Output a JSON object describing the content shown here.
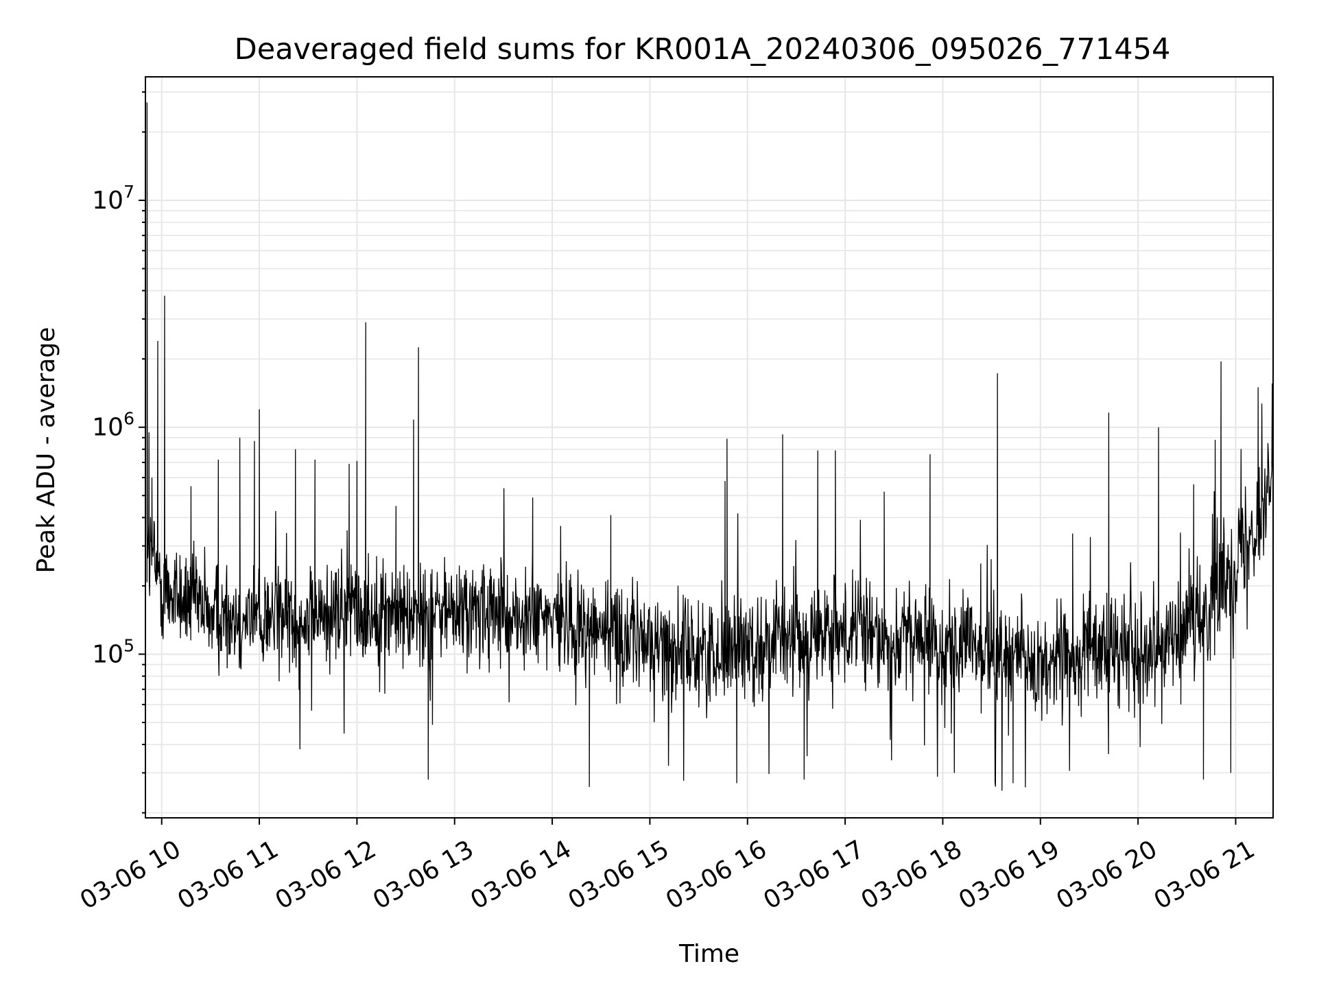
{
  "chart_data": {
    "type": "line",
    "title": "Deaveraged field sums for KR001A_20240306_095026_771454",
    "xlabel": "Time",
    "ylabel": "Peak ADU - average",
    "x_scale": "time",
    "y_scale": "log",
    "xlim": [
      "2024-03-06 09:50",
      "2024-03-06 21:23"
    ],
    "ylim": [
      19000,
      35000000
    ],
    "grid": true,
    "grid_minor": true,
    "legend": "none",
    "line_color": "#000000",
    "grid_color": "#e6e6e6",
    "x_tick_labels": [
      "03-06 10",
      "03-06 11",
      "03-06 12",
      "03-06 13",
      "03-06 14",
      "03-06 15",
      "03-06 16",
      "03-06 17",
      "03-06 18",
      "03-06 19",
      "03-06 20",
      "03-06 21"
    ],
    "x_tick_hours": [
      10,
      11,
      12,
      13,
      14,
      15,
      16,
      17,
      18,
      19,
      20,
      21
    ],
    "y_tick_labels": [
      {
        "base": "10",
        "exp": "5",
        "value": 100000
      },
      {
        "base": "10",
        "exp": "6",
        "value": 1000000
      },
      {
        "base": "10",
        "exp": "7",
        "value": 10000000
      }
    ],
    "baseline": [
      [
        9.85,
        300000
      ],
      [
        10.0,
        200000
      ],
      [
        10.5,
        150000
      ],
      [
        11.0,
        145000
      ],
      [
        11.5,
        150000
      ],
      [
        12.0,
        155000
      ],
      [
        12.5,
        150000
      ],
      [
        13.0,
        155000
      ],
      [
        13.5,
        145000
      ],
      [
        14.0,
        140000
      ],
      [
        14.5,
        130000
      ],
      [
        15.0,
        112000
      ],
      [
        15.5,
        100000
      ],
      [
        16.0,
        110000
      ],
      [
        16.5,
        120000
      ],
      [
        17.0,
        120000
      ],
      [
        17.5,
        118000
      ],
      [
        18.0,
        112000
      ],
      [
        18.5,
        100000
      ],
      [
        19.0,
        90000
      ],
      [
        19.5,
        100000
      ],
      [
        20.0,
        110000
      ],
      [
        20.5,
        120000
      ],
      [
        21.0,
        260000
      ],
      [
        21.38,
        550000
      ]
    ],
    "series": [
      {
        "values": [
          [
            9.85,
            27000000
          ],
          [
            9.87,
            950000
          ],
          [
            9.9,
            600000
          ],
          [
            9.96,
            2400000
          ],
          [
            10.03,
            3800000
          ],
          [
            10.3,
            550000
          ],
          [
            10.58,
            720000
          ],
          [
            10.8,
            900000
          ],
          [
            10.95,
            870000
          ],
          [
            11.0,
            1200000
          ],
          [
            11.37,
            800000
          ],
          [
            11.57,
            720000
          ],
          [
            11.92,
            690000
          ],
          [
            12.0,
            710000
          ],
          [
            12.09,
            2900000
          ],
          [
            12.4,
            450000
          ],
          [
            12.58,
            1080000
          ],
          [
            12.63,
            2250000
          ],
          [
            12.73,
            28000
          ],
          [
            13.8,
            490000
          ],
          [
            14.38,
            26000
          ],
          [
            14.6,
            410000
          ],
          [
            15.77,
            580000
          ],
          [
            15.79,
            890000
          ],
          [
            15.89,
            27000
          ],
          [
            16.36,
            930000
          ],
          [
            16.58,
            28000
          ],
          [
            16.72,
            790000
          ],
          [
            16.9,
            790000
          ],
          [
            17.4,
            520000
          ],
          [
            17.87,
            760000
          ],
          [
            18.56,
            1730000
          ],
          [
            18.72,
            27000
          ],
          [
            19.33,
            340000
          ],
          [
            19.7,
            1160000
          ],
          [
            20.21,
            1000000
          ],
          [
            20.57,
            560000
          ],
          [
            20.67,
            28000
          ],
          [
            20.79,
            880000
          ],
          [
            20.85,
            1950000
          ],
          [
            20.95,
            30000
          ],
          [
            21.23,
            1500000
          ],
          [
            21.38,
            700000
          ]
        ]
      }
    ]
  }
}
